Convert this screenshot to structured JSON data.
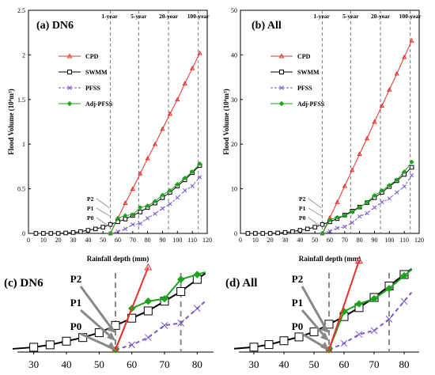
{
  "chart_data": [
    {
      "type": "line",
      "panel_label": "(a) DN6",
      "xlabel": "Rainfall depth (mm)",
      "ylabel": "Flood Volume (10⁴m³)",
      "xlim": [
        0,
        120
      ],
      "ylim": [
        0,
        2.5
      ],
      "xticks": [
        "0",
        "10",
        "20",
        "30",
        "40",
        "50",
        "60",
        "70",
        "80",
        "90",
        "100",
        "110",
        "120"
      ],
      "yticks": [
        "0",
        "0.5",
        "1",
        "1.5",
        "2",
        "2.5"
      ],
      "return_periods": [
        {
          "label": "1-year",
          "x": 55
        },
        {
          "label": "5-year",
          "x": 74
        },
        {
          "label": "20-year",
          "x": 94
        },
        {
          "label": "100-year",
          "x": 114
        }
      ],
      "point_labels": [
        "P2",
        "P1",
        "P0"
      ],
      "legend_position": "upper-left",
      "x": [
        5,
        10,
        15,
        20,
        25,
        30,
        35,
        40,
        45,
        50,
        55,
        60,
        65,
        70,
        75,
        80,
        85,
        90,
        95,
        100,
        105,
        110,
        115
      ],
      "series": [
        {
          "name": "CPD",
          "color": "#e8312a",
          "marker": "triangle",
          "x": [
            55,
            60,
            65,
            70,
            75,
            80,
            85,
            90,
            95,
            100,
            105,
            110,
            115
          ],
          "values": [
            0,
            0.17,
            0.34,
            0.5,
            0.67,
            0.84,
            1.0,
            1.17,
            1.34,
            1.5,
            1.68,
            1.85,
            2.02
          ]
        },
        {
          "name": "SWMM",
          "color": "#000000",
          "marker": "square",
          "x": [
            5,
            10,
            15,
            20,
            25,
            30,
            35,
            40,
            45,
            50,
            55,
            60,
            65,
            70,
            75,
            80,
            85,
            90,
            95,
            100,
            105,
            110,
            115
          ],
          "values": [
            0,
            0,
            0,
            0,
            0.005,
            0.01,
            0.02,
            0.035,
            0.05,
            0.07,
            0.1,
            0.13,
            0.16,
            0.2,
            0.24,
            0.29,
            0.34,
            0.4,
            0.46,
            0.53,
            0.6,
            0.68,
            0.76
          ]
        },
        {
          "name": "PFSS",
          "color": "#7a56c9",
          "marker": "x",
          "x": [
            55,
            60,
            65,
            70,
            75,
            80,
            85,
            90,
            95,
            100,
            105,
            110,
            115
          ],
          "values": [
            0,
            0.02,
            0.05,
            0.1,
            0.11,
            0.17,
            0.22,
            0.28,
            0.33,
            0.4,
            0.48,
            0.53,
            0.63
          ]
        },
        {
          "name": "Adj-PFSS",
          "color": "#1aa51a",
          "marker": "diamond",
          "x": [
            55,
            60,
            65,
            70,
            75,
            80,
            85,
            90,
            95,
            100,
            105,
            110,
            115
          ],
          "values": [
            0,
            0.17,
            0.2,
            0.21,
            0.29,
            0.31,
            0.36,
            0.43,
            0.48,
            0.55,
            0.62,
            0.69,
            0.78
          ]
        }
      ]
    },
    {
      "type": "line",
      "panel_label": "(b) All",
      "xlabel": "Rainfall depth (mm)",
      "ylabel": "Flood Volume (10⁴m³)",
      "xlim": [
        0,
        120
      ],
      "ylim": [
        0,
        50
      ],
      "xticks": [
        "0",
        "10",
        "20",
        "30",
        "40",
        "50",
        "60",
        "70",
        "80",
        "90",
        "100",
        "110",
        "120"
      ],
      "yticks": [
        "0",
        "10",
        "20",
        "30",
        "40",
        "50"
      ],
      "return_periods": [
        {
          "label": "1-year",
          "x": 55
        },
        {
          "label": "5-year",
          "x": 74
        },
        {
          "label": "20-year",
          "x": 94
        },
        {
          "label": "100-year",
          "x": 114
        }
      ],
      "point_labels": [
        "P2",
        "P1",
        "P0"
      ],
      "legend_position": "upper-left",
      "series": [
        {
          "name": "CPD",
          "color": "#e8312a",
          "marker": "triangle",
          "x": [
            55,
            60,
            65,
            70,
            75,
            80,
            85,
            90,
            95,
            100,
            105,
            110,
            115
          ],
          "values": [
            0,
            3.5,
            7,
            10.6,
            14.2,
            17.8,
            21.3,
            25,
            28.6,
            32.2,
            35.8,
            39.5,
            43.2
          ]
        },
        {
          "name": "SWMM",
          "color": "#000000",
          "marker": "square",
          "x": [
            5,
            10,
            15,
            20,
            25,
            30,
            35,
            40,
            45,
            50,
            55,
            60,
            65,
            70,
            75,
            80,
            85,
            90,
            95,
            100,
            105,
            110,
            115
          ],
          "values": [
            0,
            0,
            0,
            0,
            0.1,
            0.2,
            0.4,
            0.7,
            1.0,
            1.4,
            2.0,
            2.6,
            3.3,
            4.1,
            5.0,
            5.9,
            6.9,
            8.0,
            9.2,
            10.5,
            11.8,
            13.2,
            14.8
          ]
        },
        {
          "name": "PFSS",
          "color": "#7a56c9",
          "marker": "x",
          "x": [
            55,
            60,
            65,
            70,
            75,
            80,
            85,
            90,
            95,
            100,
            105,
            110,
            115
          ],
          "values": [
            0,
            0.5,
            1.2,
            1.5,
            2.4,
            3.8,
            4.5,
            5.8,
            7.0,
            7.8,
            9.2,
            10.5,
            13.0
          ]
        },
        {
          "name": "Adj-PFSS",
          "color": "#1aa51a",
          "marker": "diamond",
          "x": [
            55,
            60,
            65,
            70,
            75,
            80,
            85,
            90,
            95,
            100,
            105,
            110,
            115
          ],
          "values": [
            0,
            3.0,
            3.6,
            4.0,
            4.8,
            5.8,
            7.0,
            8.5,
            9.6,
            10.8,
            12.0,
            13.8,
            16.0
          ]
        }
      ]
    },
    {
      "type": "line",
      "panel_label": "(c) DN6",
      "xlim": [
        25,
        85
      ],
      "xticks": [
        "30",
        "40",
        "50",
        "60",
        "70",
        "80"
      ],
      "point_labels": [
        "P2",
        "P1",
        "P0"
      ],
      "series": [
        {
          "name": "CPD",
          "x": [
            55,
            60,
            65
          ],
          "values": [
            0,
            0.17,
            0.34
          ]
        },
        {
          "name": "SWMM",
          "x": [
            30,
            35,
            40,
            45,
            50,
            55,
            60,
            65,
            70,
            75,
            80
          ],
          "values": [
            0.01,
            0.02,
            0.035,
            0.05,
            0.07,
            0.1,
            0.13,
            0.16,
            0.2,
            0.24,
            0.29
          ]
        },
        {
          "name": "PFSS",
          "x": [
            55,
            60,
            65,
            70,
            75,
            80
          ],
          "values": [
            0,
            0.02,
            0.05,
            0.1,
            0.11,
            0.17
          ]
        },
        {
          "name": "Adj-PFSS",
          "x": [
            55,
            60,
            65,
            70,
            75,
            80
          ],
          "values": [
            0,
            0.17,
            0.2,
            0.21,
            0.29,
            0.31
          ]
        }
      ]
    },
    {
      "type": "line",
      "panel_label": "(d) All",
      "xlim": [
        25,
        85
      ],
      "xticks": [
        "30",
        "40",
        "50",
        "60",
        "70",
        "80"
      ],
      "point_labels": [
        "P2",
        "P1",
        "P0"
      ],
      "series": [
        {
          "name": "CPD",
          "x": [
            55,
            60,
            65
          ],
          "values": [
            0,
            3.5,
            7
          ]
        },
        {
          "name": "SWMM",
          "x": [
            30,
            35,
            40,
            45,
            50,
            55,
            60,
            65,
            70,
            75,
            80
          ],
          "values": [
            0.2,
            0.4,
            0.7,
            1.0,
            1.4,
            2.0,
            2.6,
            3.3,
            4.1,
            5.0,
            5.9
          ]
        },
        {
          "name": "PFSS",
          "x": [
            55,
            60,
            65,
            70,
            75,
            80
          ],
          "values": [
            0,
            0.5,
            1.2,
            1.5,
            2.4,
            3.8
          ]
        },
        {
          "name": "Adj-PFSS",
          "x": [
            55,
            60,
            65,
            70,
            75,
            80
          ],
          "values": [
            0,
            3.0,
            3.6,
            4.0,
            4.8,
            5.8
          ]
        }
      ]
    }
  ]
}
